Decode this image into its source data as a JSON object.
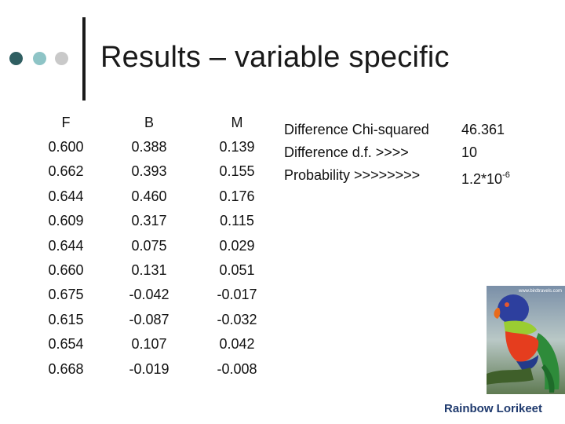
{
  "colors": {
    "dot1": "#2f5e61",
    "dot2": "#8ec4c6",
    "dot3": "#c9c9c9",
    "caption": "#1f3a6e"
  },
  "title": "Results – variable specific",
  "table": {
    "headers": [
      "F",
      "B",
      "M"
    ],
    "F": [
      "0.600",
      "0.662",
      "0.644",
      "0.609",
      "0.644",
      "0.660",
      "0.675",
      "0.615",
      "0.654",
      "0.668"
    ],
    "B": [
      "0.388",
      "0.393",
      "0.460",
      "0.317",
      "0.075",
      "0.131",
      "-0.042",
      "-0.087",
      "0.107",
      "-0.019"
    ],
    "M": [
      "0.139",
      "0.155",
      "0.176",
      "0.115",
      "0.029",
      "0.051",
      "-0.017",
      "-0.032",
      "0.042",
      "-0.008"
    ]
  },
  "stats": [
    {
      "label": "Difference Chi-squared",
      "value": "46.361"
    },
    {
      "label": "Difference d.f.  >>>>",
      "value": "10"
    },
    {
      "label": "Probability >>>>>>>>",
      "value": "1.2*10",
      "exponent": "-6"
    }
  ],
  "image": {
    "icon": "rainbow-lorikeet-photo",
    "watermark": "www.birdtravels.com"
  },
  "caption": "Rainbow Lorikeet"
}
